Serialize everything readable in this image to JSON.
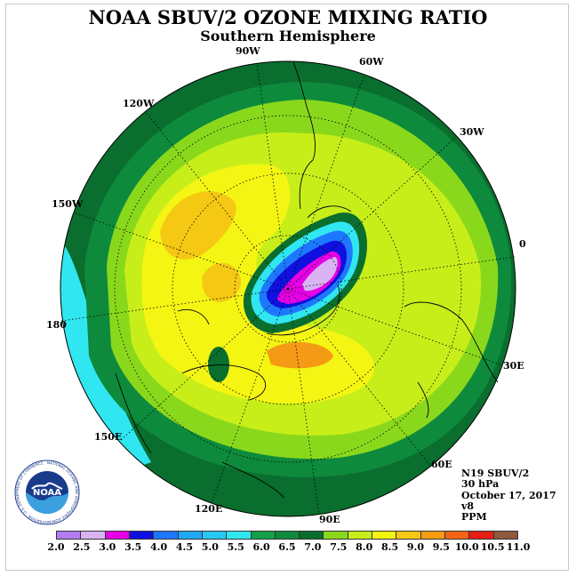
{
  "title": "NOAA SBUV/2 OZONE MIXING RATIO",
  "subtitle": "Southern Hemisphere",
  "longitude_labels": [
    "90W",
    "60W",
    "30W",
    "0",
    "30E",
    "60E",
    "90E",
    "120E",
    "150E",
    "180",
    "150W",
    "120W"
  ],
  "info": {
    "instrument": "N19 SBUV/2",
    "level": "30 hPa",
    "date": "October 17, 2017",
    "version": "v8",
    "units": "PPM"
  },
  "logo": {
    "text": "NOAA",
    "ring_text": "NATIONAL OCEANIC AND ATMOSPHERIC ADMINISTRATION · U.S. DEPARTMENT OF COMMERCE"
  },
  "colorbar": {
    "labels": [
      "2.0",
      "2.5",
      "3.0",
      "3.5",
      "4.0",
      "4.5",
      "5.0",
      "5.5",
      "6.0",
      "6.5",
      "7.0",
      "7.5",
      "8.0",
      "8.5",
      "9.0",
      "9.5",
      "10.0",
      "10.5",
      "11.0"
    ],
    "colors": [
      "#b57cf2",
      "#d9b3f2",
      "#e600e6",
      "#1010e0",
      "#1e78ff",
      "#20a8f5",
      "#28c8f5",
      "#30e6f0",
      "#14a048",
      "#0e8a3c",
      "#0a6e2e",
      "#8ad81c",
      "#c8ee1a",
      "#f5f514",
      "#f5c814",
      "#f59a14",
      "#f56414",
      "#e81e14",
      "#8c5a3c"
    ]
  },
  "colors": {
    "ocean_outer": "#0a6e2e",
    "ring_mid": "#0e8a3c",
    "land_green": "#8ad81c",
    "yellow_green": "#c8ee1a",
    "yellow": "#f5f514",
    "orange": "#f5c814",
    "deep_orange": "#f59a14"
  }
}
